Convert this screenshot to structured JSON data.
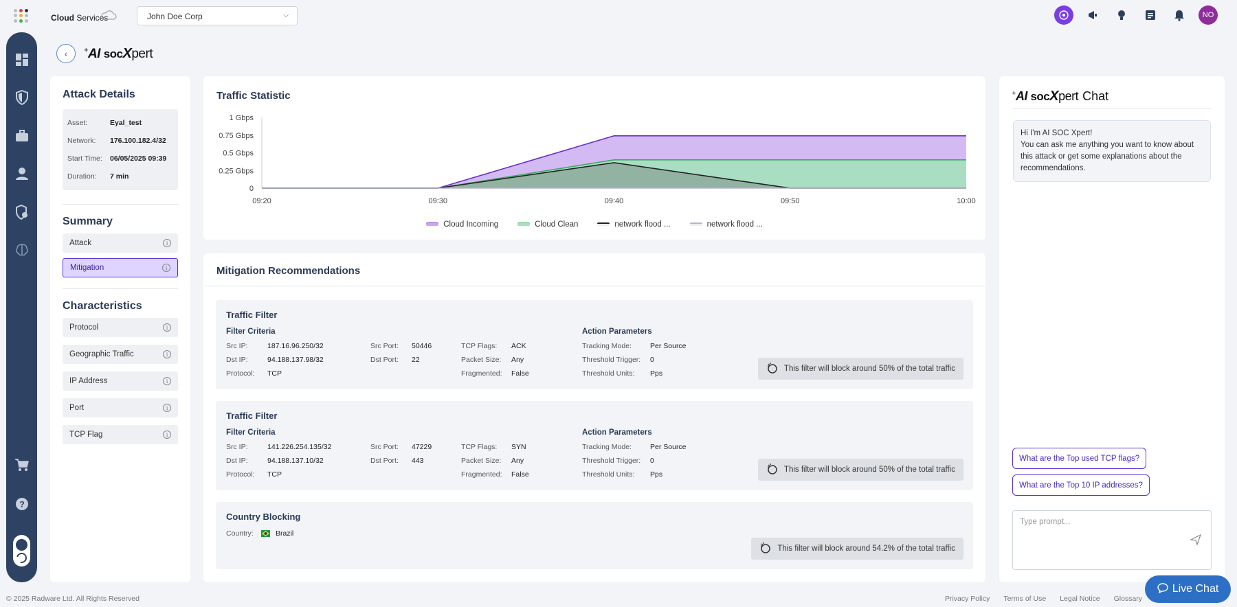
{
  "topbar": {
    "brand_bold": "Cloud",
    "brand_rest": " Services",
    "org_selected": "John Doe Corp",
    "avatar_initials": "NO",
    "icons": [
      "ai-icon",
      "megaphone-icon",
      "lightbulb-icon",
      "notes-icon",
      "bell-icon"
    ]
  },
  "sidebar": {
    "icons": [
      "dashboard-icon",
      "shield-icon",
      "briefcase-icon",
      "user-icon",
      "shield-settings-icon",
      "brain-icon",
      "cart-icon",
      "help-icon",
      "theme-toggle-icon"
    ]
  },
  "header": {
    "logo_ai": "AI",
    "logo_soc": "soc",
    "logo_x": "X",
    "logo_pert": "pert"
  },
  "attack_details": {
    "title": "Attack Details",
    "rows": [
      {
        "label": "Asset:",
        "value": "Eyal_test"
      },
      {
        "label": "Network:",
        "value": "176.100.182.4/32"
      },
      {
        "label": "Start Time:",
        "value": "06/05/2025 09:39"
      },
      {
        "label": "Duration:",
        "value": "7 min"
      }
    ]
  },
  "summary": {
    "title": "Summary",
    "items": [
      {
        "label": "Attack",
        "active": false
      },
      {
        "label": "Mitigation",
        "active": true
      }
    ]
  },
  "characteristics": {
    "title": "Characteristics",
    "items": [
      "Protocol",
      "Geographic Traffic",
      "IP Address",
      "Port",
      "TCP Flag"
    ]
  },
  "traffic": {
    "title": "Traffic Statistic",
    "legend": [
      {
        "name": "Cloud Incoming",
        "color": "#c9a8f0"
      },
      {
        "name": "Cloud Clean",
        "color": "#7fd39a"
      },
      {
        "name": "network flood ...",
        "color": "#333333"
      },
      {
        "name": "network flood ...",
        "color": "#b9b4d4"
      }
    ]
  },
  "chart_data": {
    "type": "area",
    "title": "Traffic Statistic",
    "x": [
      "09:20",
      "09:30",
      "09:40",
      "09:50",
      "10:00"
    ],
    "y_ticks": [
      "0",
      "0.25 Gbps",
      "0.5 Gbps",
      "0.75 Gbps",
      "1 Gbps"
    ],
    "ylim": [
      0,
      1
    ],
    "unit": "Gbps",
    "series": [
      {
        "name": "Cloud Incoming",
        "color": "#c9a8f0",
        "points": [
          [
            "09:20",
            0
          ],
          [
            "09:30",
            0
          ],
          [
            "09:40",
            0.74
          ],
          [
            "09:50",
            0.74
          ],
          [
            "10:00",
            0.74
          ]
        ]
      },
      {
        "name": "Cloud Clean",
        "color": "#7fd39a",
        "points": [
          [
            "09:20",
            0
          ],
          [
            "09:30",
            0
          ],
          [
            "09:40",
            0.4
          ],
          [
            "09:50",
            0.4
          ],
          [
            "10:00",
            0.4
          ]
        ]
      },
      {
        "name": "network flood ...",
        "color": "#333333",
        "points": [
          [
            "09:20",
            0
          ],
          [
            "09:30",
            0
          ],
          [
            "09:40",
            0.36
          ],
          [
            "09:50",
            0
          ],
          [
            "10:00",
            0
          ]
        ]
      },
      {
        "name": "network flood ...",
        "color": "#b9b4d4",
        "points": [
          [
            "09:20",
            0
          ],
          [
            "09:30",
            0
          ],
          [
            "09:40",
            0
          ],
          [
            "09:50",
            0
          ],
          [
            "10:00",
            0
          ]
        ]
      }
    ]
  },
  "mitigation": {
    "title": "Mitigation Recommendations",
    "filters": [
      {
        "title": "Traffic Filter",
        "criteria_title": "Filter Criteria",
        "action_title": "Action Parameters",
        "src_ip_label": "Src IP:",
        "src_ip": "187.16.96.250/32",
        "dst_ip_label": "Dst IP:",
        "dst_ip": "94.188.137.98/32",
        "protocol_label": "Protocol:",
        "protocol": "TCP",
        "src_port_label": "Src Port:",
        "src_port": "50446",
        "dst_port_label": "Dst Port:",
        "dst_port": "22",
        "tcp_flags_label": "TCP Flags:",
        "tcp_flags": "ACK",
        "packet_size_label": "Packet Size:",
        "packet_size": "Any",
        "fragmented_label": "Fragmented:",
        "fragmented": "False",
        "tracking_label": "Tracking Mode:",
        "tracking": "Per Source",
        "threshold_label": "Threshold Trigger:",
        "threshold": "0",
        "units_label": "Threshold Units:",
        "units": "Pps",
        "block_text": "This filter will block around 50% of the total traffic"
      },
      {
        "title": "Traffic Filter",
        "criteria_title": "Filter Criteria",
        "action_title": "Action Parameters",
        "src_ip_label": "Src IP:",
        "src_ip": "141.226.254.135/32",
        "dst_ip_label": "Dst IP:",
        "dst_ip": "94.188.137.10/32",
        "protocol_label": "Protocol:",
        "protocol": "TCP",
        "src_port_label": "Src Port:",
        "src_port": "47229",
        "dst_port_label": "Dst Port:",
        "dst_port": "443",
        "tcp_flags_label": "TCP Flags:",
        "tcp_flags": "SYN",
        "packet_size_label": "Packet Size:",
        "packet_size": "Any",
        "fragmented_label": "Fragmented:",
        "fragmented": "False",
        "tracking_label": "Tracking Mode:",
        "tracking": "Per Source",
        "threshold_label": "Threshold Trigger:",
        "threshold": "0",
        "units_label": "Threshold Units:",
        "units": "Pps",
        "block_text": "This filter will block around 50% of the total traffic"
      }
    ],
    "country": {
      "title": "Country Blocking",
      "label": "Country:",
      "value": "Brazil",
      "block_text": "This filter will block around 54.2% of the total traffic"
    }
  },
  "chat": {
    "title_suffix": "Chat",
    "greeting_line1": "Hi I'm AI SOC Xpert!",
    "greeting_line2": "You can ask me anything you want to know about this attack or get some explanations about the recommendations.",
    "suggestions": [
      "What are the Top used TCP flags?",
      "What are the Top 10 IP addresses?"
    ],
    "prompt_placeholder": "Type prompt..."
  },
  "footer": {
    "copyright": "© 2025 Radware Ltd. All Rights Reserved",
    "links": [
      "Privacy Policy",
      "Terms of Use",
      "Legal Notice",
      "Glossary"
    ],
    "live_chat": "Live Chat"
  }
}
